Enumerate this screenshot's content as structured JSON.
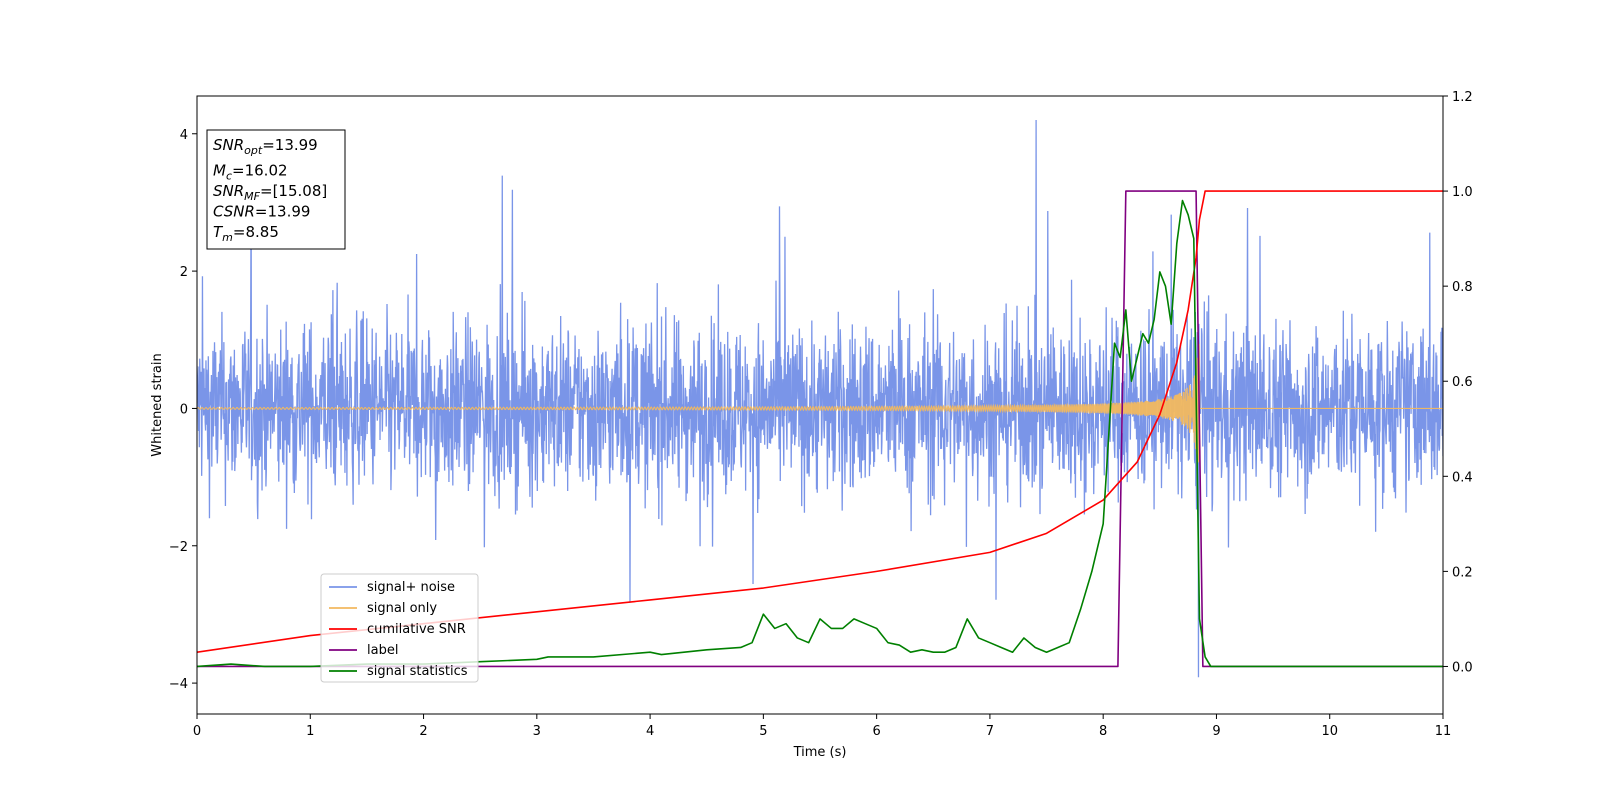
{
  "chart_data": {
    "type": "line",
    "xlabel": "Time (s)",
    "ylabel": "Whitened strain",
    "xlim": [
      0,
      11
    ],
    "ylim_left": [
      -4.45,
      4.55
    ],
    "ylim_right": [
      -0.1,
      1.2
    ],
    "x_ticks": [
      "0",
      "1",
      "2",
      "3",
      "4",
      "5",
      "6",
      "7",
      "8",
      "9",
      "10",
      "11"
    ],
    "y_ticks_left": [
      "−4",
      "−2",
      "0",
      "2",
      "4"
    ],
    "y_ticks_right": [
      "0.0",
      "0.2",
      "0.4",
      "0.6",
      "0.8",
      "1.0",
      "1.2"
    ],
    "grid": false,
    "legend_position": "lower-left",
    "info_box": [
      {
        "main": "SNR",
        "sub": "opt",
        "rest": "=13.99"
      },
      {
        "main": "M",
        "sub": "c",
        "rest": "=16.02"
      },
      {
        "main": "SNR",
        "sub": "MF",
        "rest": "=[15.08]"
      },
      {
        "main": "CSNR",
        "sub": "",
        "rest": "=13.99"
      },
      {
        "main": "T",
        "sub": "m",
        "rest": "=8.85"
      }
    ],
    "series": [
      {
        "name": "signal+ noise",
        "color": "#7a95e8",
        "axis": "left",
        "description": "noise band approx ±1.7 with spikes",
        "envelope": [
          -1.7,
          1.7
        ]
      },
      {
        "name": "signal only",
        "color": "#f2b85f",
        "axis": "left",
        "description": "chirp waveform growing in amplitude until merger at 8.85 s"
      },
      {
        "name": "cumilative SNR",
        "color": "#ff0000",
        "axis": "right",
        "x": [
          0,
          1,
          2,
          3,
          4,
          5,
          6,
          7,
          7.5,
          8,
          8.3,
          8.5,
          8.65,
          8.75,
          8.82,
          8.85,
          8.9,
          11
        ],
        "y": [
          0.03,
          0.065,
          0.09,
          0.115,
          0.14,
          0.165,
          0.2,
          0.24,
          0.28,
          0.35,
          0.43,
          0.53,
          0.64,
          0.75,
          0.86,
          0.94,
          1.0,
          1.0
        ]
      },
      {
        "name": "label",
        "color": "#800080",
        "axis": "right",
        "x": [
          0,
          8.13,
          8.2,
          8.82,
          8.88,
          11
        ],
        "y": [
          0,
          0,
          1,
          1,
          0,
          0
        ]
      },
      {
        "name": "signal statistics",
        "color": "#008000",
        "axis": "right",
        "x": [
          0,
          0.3,
          0.6,
          1.0,
          1.5,
          2.0,
          2.5,
          3.0,
          3.1,
          3.5,
          4.0,
          4.1,
          4.5,
          4.8,
          4.9,
          5.0,
          5.1,
          5.2,
          5.3,
          5.4,
          5.5,
          5.6,
          5.7,
          5.8,
          5.9,
          6.0,
          6.1,
          6.2,
          6.3,
          6.4,
          6.5,
          6.6,
          6.7,
          6.8,
          6.9,
          7.0,
          7.1,
          7.2,
          7.3,
          7.4,
          7.5,
          7.6,
          7.7,
          7.8,
          7.9,
          8.0,
          8.1,
          8.15,
          8.2,
          8.25,
          8.3,
          8.35,
          8.4,
          8.45,
          8.5,
          8.55,
          8.6,
          8.65,
          8.7,
          8.75,
          8.8,
          8.85,
          8.9,
          8.95,
          11
        ],
        "y": [
          0.0,
          0.005,
          0.0,
          0.0,
          0.005,
          0.005,
          0.01,
          0.015,
          0.02,
          0.02,
          0.03,
          0.025,
          0.035,
          0.04,
          0.05,
          0.11,
          0.08,
          0.09,
          0.06,
          0.05,
          0.1,
          0.08,
          0.08,
          0.1,
          0.09,
          0.08,
          0.05,
          0.045,
          0.03,
          0.035,
          0.03,
          0.03,
          0.04,
          0.1,
          0.06,
          0.05,
          0.04,
          0.03,
          0.06,
          0.04,
          0.03,
          0.04,
          0.05,
          0.12,
          0.2,
          0.3,
          0.68,
          0.65,
          0.75,
          0.6,
          0.65,
          0.7,
          0.68,
          0.73,
          0.83,
          0.8,
          0.72,
          0.89,
          0.98,
          0.95,
          0.9,
          0.1,
          0.02,
          0.0,
          0.0
        ]
      }
    ]
  }
}
